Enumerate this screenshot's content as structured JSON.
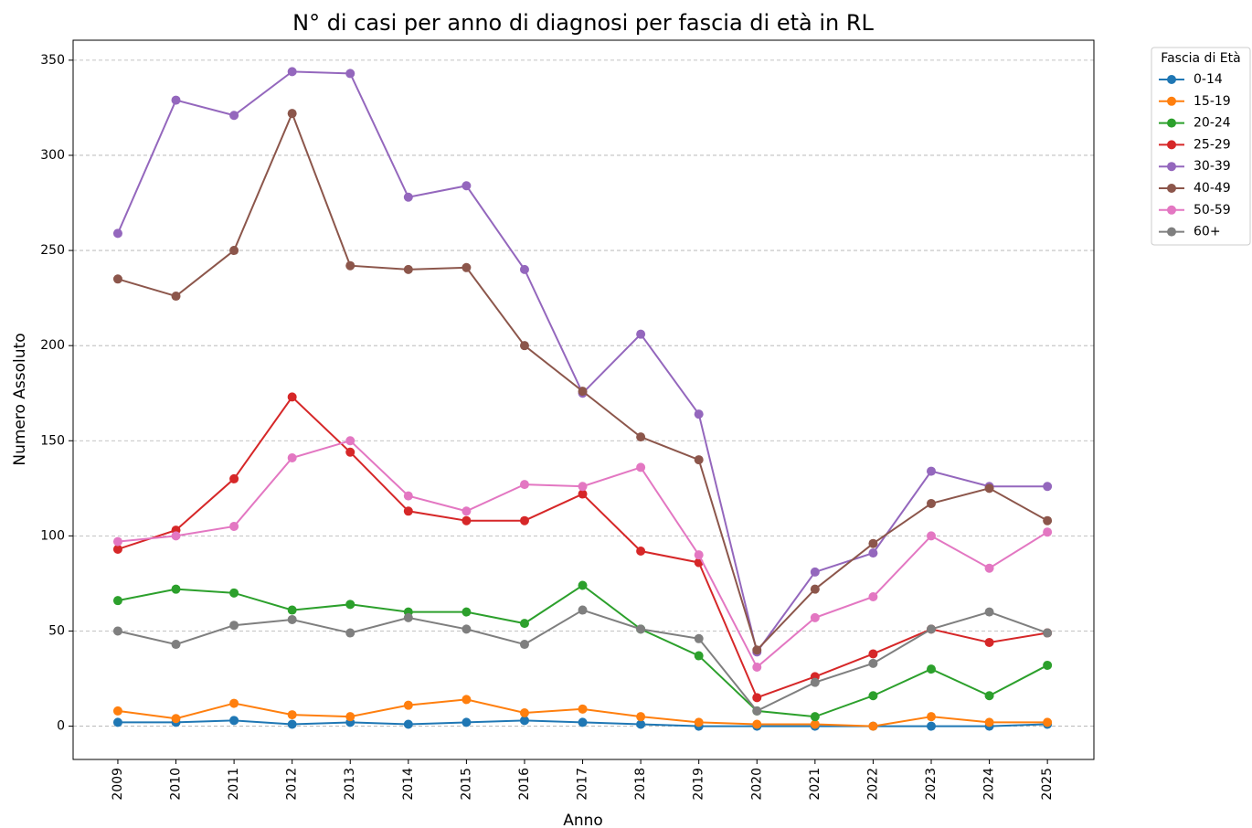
{
  "chart_data": {
    "type": "line",
    "title": "N° di casi per anno di diagnosi per fascia di età in RL",
    "x_label": "Anno",
    "y_label": "Numero Assoluto",
    "legend_title": "Fascia di Età",
    "legend_position": "outside-upper-right",
    "x": [
      2009,
      2010,
      2011,
      2012,
      2013,
      2014,
      2015,
      2016,
      2017,
      2018,
      2019,
      2020,
      2021,
      2022,
      2023,
      2024,
      2025
    ],
    "xlim": [
      2008.23,
      2025.8
    ],
    "xticks": [
      2009,
      2010,
      2011,
      2012,
      2013,
      2014,
      2015,
      2016,
      2017,
      2018,
      2019,
      2020,
      2021,
      2022,
      2023,
      2024,
      2025
    ],
    "ylim": [
      -17.5,
      360.5
    ],
    "yticks": [
      0,
      50,
      100,
      150,
      200,
      250,
      300,
      350
    ],
    "grid": true,
    "series": [
      {
        "name": "0-14",
        "color": "#1f77b4",
        "values": [
          2,
          2,
          3,
          1,
          2,
          1,
          2,
          3,
          2,
          1,
          0,
          0,
          0,
          0,
          0,
          0,
          1
        ]
      },
      {
        "name": "15-19",
        "color": "#ff7f0e",
        "values": [
          8,
          4,
          12,
          6,
          5,
          11,
          14,
          7,
          9,
          5,
          2,
          1,
          1,
          0,
          5,
          2,
          2
        ]
      },
      {
        "name": "20-24",
        "color": "#2ca02c",
        "values": [
          66,
          72,
          70,
          61,
          64,
          60,
          60,
          54,
          74,
          51,
          37,
          8,
          5,
          16,
          30,
          16,
          32
        ]
      },
      {
        "name": "25-29",
        "color": "#d62728",
        "values": [
          93,
          103,
          130,
          173,
          144,
          113,
          108,
          108,
          122,
          92,
          86,
          15,
          26,
          38,
          51,
          44,
          49
        ]
      },
      {
        "name": "30-39",
        "color": "#9467bd",
        "values": [
          259,
          329,
          321,
          344,
          343,
          278,
          284,
          240,
          175,
          206,
          164,
          39,
          81,
          91,
          134,
          126,
          126
        ]
      },
      {
        "name": "40-49",
        "color": "#8c564b",
        "values": [
          235,
          226,
          250,
          322,
          242,
          240,
          241,
          200,
          176,
          152,
          140,
          40,
          72,
          96,
          117,
          125,
          108
        ]
      },
      {
        "name": "50-59",
        "color": "#e377c2",
        "values": [
          97,
          100,
          105,
          141,
          150,
          121,
          113,
          127,
          126,
          136,
          90,
          31,
          57,
          68,
          100,
          83,
          102
        ]
      },
      {
        "name": "60+",
        "color": "#7f7f7f",
        "values": [
          50,
          43,
          53,
          56,
          49,
          57,
          51,
          43,
          61,
          51,
          46,
          8,
          23,
          33,
          51,
          60,
          49
        ]
      }
    ]
  }
}
